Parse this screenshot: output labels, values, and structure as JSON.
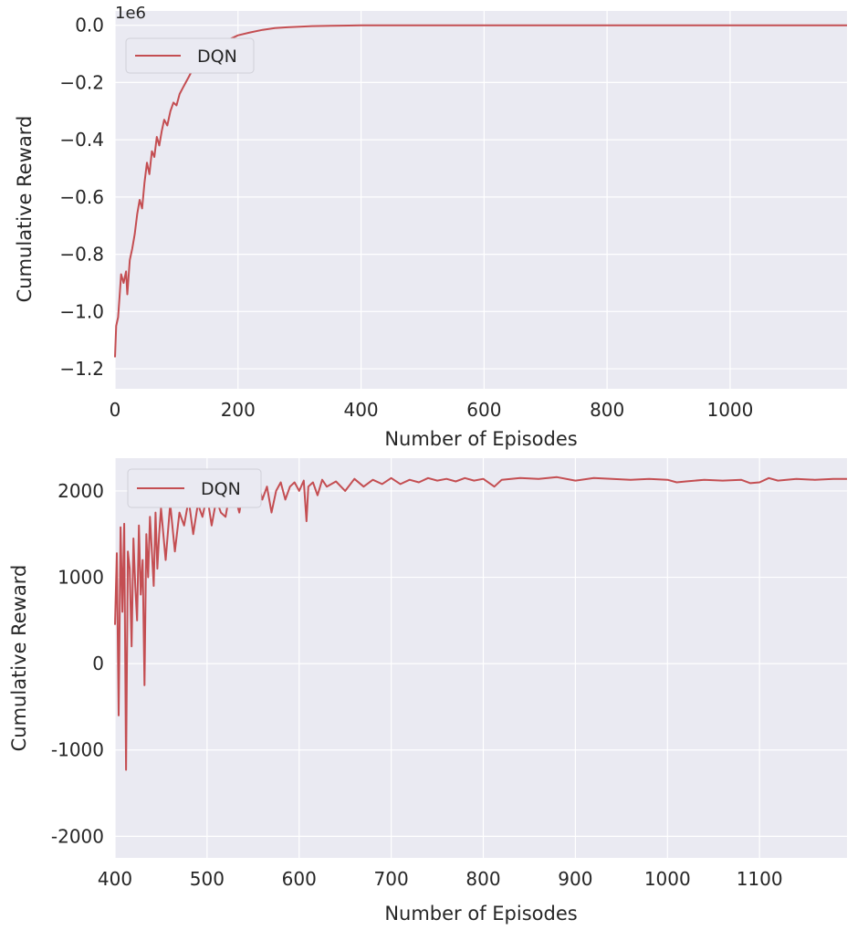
{
  "chart_data": [
    {
      "type": "line",
      "title": "",
      "xlabel": "Number of Episodes",
      "ylabel": "Cumulative Reward",
      "y_offset_label": "1e6",
      "xlim": [
        0,
        1190
      ],
      "ylim": [
        -1.27,
        0.05
      ],
      "x_ticks": [
        0,
        200,
        400,
        600,
        800,
        1000
      ],
      "x_tick_labels": [
        "0",
        "200",
        "400",
        "600",
        "800",
        "1000"
      ],
      "y_ticks": [
        0.0,
        -0.2,
        -0.4,
        -0.6,
        -0.8,
        -1.0,
        -1.2
      ],
      "y_tick_labels": [
        "0.0",
        "−0.2",
        "−0.4",
        "−0.6",
        "−0.8",
        "−1.0",
        "−1.2"
      ],
      "grid": true,
      "legend": {
        "position": "top-left",
        "entries": [
          "DQN"
        ]
      },
      "series": [
        {
          "name": "DQN",
          "color": "#c44e52",
          "x": [
            0,
            2,
            5,
            8,
            10,
            14,
            18,
            20,
            24,
            28,
            32,
            36,
            40,
            44,
            48,
            52,
            56,
            60,
            64,
            68,
            72,
            76,
            80,
            85,
            90,
            95,
            100,
            105,
            110,
            115,
            120,
            125,
            130,
            140,
            150,
            160,
            170,
            180,
            190,
            200,
            220,
            240,
            260,
            280,
            300,
            320,
            350,
            380,
            400,
            450,
            500,
            600,
            700,
            800,
            900,
            1000,
            1100,
            1190
          ],
          "y": [
            -1.16,
            -1.05,
            -1.02,
            -0.93,
            -0.87,
            -0.9,
            -0.86,
            -0.94,
            -0.82,
            -0.78,
            -0.73,
            -0.66,
            -0.61,
            -0.64,
            -0.55,
            -0.48,
            -0.52,
            -0.44,
            -0.46,
            -0.39,
            -0.42,
            -0.37,
            -0.33,
            -0.35,
            -0.3,
            -0.27,
            -0.28,
            -0.24,
            -0.22,
            -0.2,
            -0.18,
            -0.16,
            -0.14,
            -0.12,
            -0.1,
            -0.085,
            -0.07,
            -0.055,
            -0.045,
            -0.035,
            -0.025,
            -0.016,
            -0.01,
            -0.007,
            -0.005,
            -0.003,
            -0.002,
            -0.001,
            0.0,
            0.0,
            0.0,
            0.0,
            0.0,
            0.0,
            0.0,
            0.0,
            0.0,
            0.0
          ]
        }
      ]
    },
    {
      "type": "line",
      "title": "",
      "xlabel": "Number of Episodes",
      "ylabel": "Cumulative Reward",
      "xlim": [
        400,
        1195
      ],
      "ylim": [
        -2250,
        2380
      ],
      "x_ticks": [
        400,
        500,
        600,
        700,
        800,
        900,
        1000,
        1100
      ],
      "x_tick_labels": [
        "400",
        "500",
        "600",
        "700",
        "800",
        "900",
        "1000",
        "1100"
      ],
      "y_ticks": [
        2000,
        1000,
        0,
        -1000,
        -2000
      ],
      "y_tick_labels": [
        "2000",
        "1000",
        "0",
        "-1000",
        "-2000"
      ],
      "grid": true,
      "legend": {
        "position": "top-left",
        "entries": [
          "DQN"
        ]
      },
      "series": [
        {
          "name": "DQN",
          "color": "#c44e52",
          "x": [
            400,
            402,
            404,
            406,
            408,
            410,
            412,
            414,
            416,
            418,
            420,
            422,
            424,
            426,
            428,
            430,
            432,
            434,
            436,
            438,
            440,
            442,
            444,
            446,
            448,
            450,
            455,
            460,
            465,
            470,
            475,
            480,
            485,
            490,
            495,
            500,
            505,
            510,
            515,
            520,
            525,
            530,
            535,
            540,
            545,
            550,
            555,
            560,
            565,
            570,
            575,
            580,
            585,
            590,
            595,
            600,
            605,
            608,
            610,
            615,
            620,
            625,
            630,
            640,
            650,
            660,
            670,
            680,
            690,
            700,
            710,
            720,
            730,
            740,
            750,
            760,
            770,
            780,
            790,
            800,
            812,
            820,
            840,
            860,
            880,
            900,
            920,
            940,
            960,
            980,
            1000,
            1010,
            1020,
            1040,
            1060,
            1080,
            1090,
            1100,
            1110,
            1120,
            1140,
            1160,
            1180,
            1195
          ],
          "y": [
            450,
            1280,
            -600,
            1580,
            600,
            1620,
            -1230,
            1300,
            1100,
            200,
            1450,
            900,
            500,
            1600,
            800,
            1200,
            -250,
            1500,
            1000,
            1700,
            1300,
            900,
            1750,
            1100,
            1500,
            1800,
            1200,
            1850,
            1300,
            1750,
            1600,
            1900,
            1500,
            1850,
            1700,
            1950,
            1600,
            1900,
            1750,
            1700,
            2000,
            1950,
            1750,
            2050,
            1850,
            1950,
            2100,
            1900,
            2050,
            1750,
            2000,
            2100,
            1900,
            2050,
            2100,
            2000,
            2120,
            1650,
            2050,
            2100,
            1950,
            2130,
            2050,
            2110,
            2000,
            2140,
            2050,
            2130,
            2080,
            2150,
            2080,
            2130,
            2100,
            2150,
            2120,
            2140,
            2110,
            2150,
            2120,
            2140,
            2050,
            2130,
            2150,
            2140,
            2160,
            2120,
            2150,
            2140,
            2130,
            2140,
            2130,
            2100,
            2110,
            2130,
            2120,
            2130,
            2090,
            2100,
            2150,
            2120,
            2140,
            2130,
            2140,
            2140
          ]
        }
      ]
    }
  ]
}
